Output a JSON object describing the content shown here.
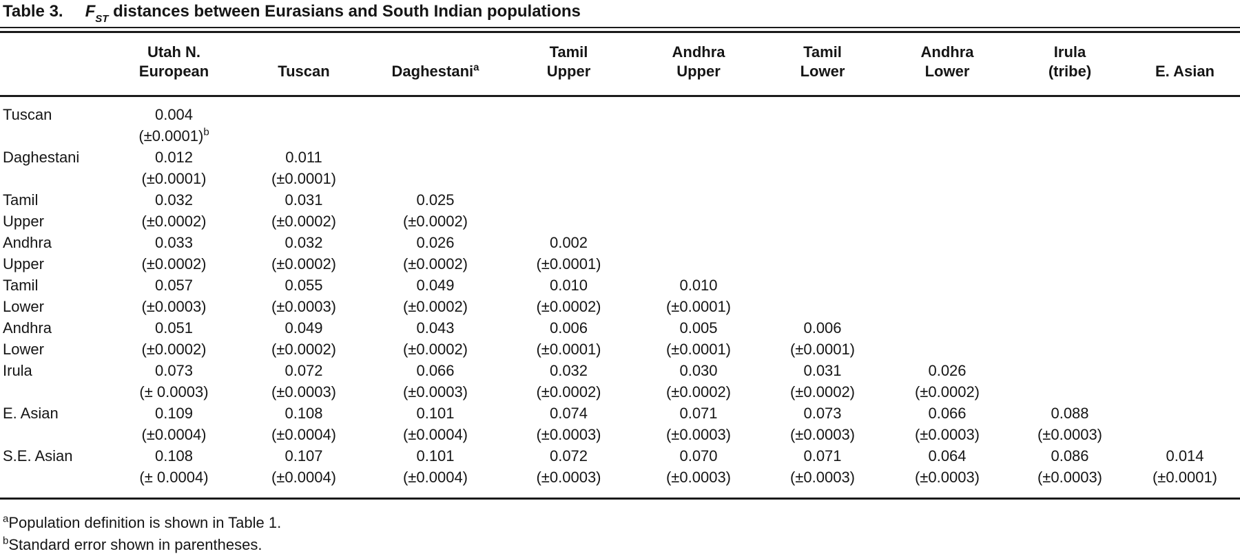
{
  "title": {
    "label": "Table 3.",
    "symbol": "F",
    "symbol_sub": "ST",
    "text": " distances between Eurasians and South Indian populations"
  },
  "table": {
    "column_headers": [
      {
        "line1": "Utah N.",
        "line2": "European",
        "sup": ""
      },
      {
        "line1": "",
        "line2": "Tuscan",
        "sup": ""
      },
      {
        "line1": "",
        "line2": "Daghestani",
        "sup": "a"
      },
      {
        "line1": "Tamil",
        "line2": "Upper",
        "sup": ""
      },
      {
        "line1": "Andhra",
        "line2": "Upper",
        "sup": ""
      },
      {
        "line1": "Tamil",
        "line2": "Lower",
        "sup": ""
      },
      {
        "line1": "Andhra",
        "line2": "Lower",
        "sup": ""
      },
      {
        "line1": "Irula",
        "line2": "(tribe)",
        "sup": ""
      },
      {
        "line1": "",
        "line2": "E. Asian",
        "sup": ""
      }
    ],
    "rows": [
      {
        "label_line1": "Tuscan",
        "label_line2": "",
        "values": [
          "0.004"
        ],
        "errors": [
          "(±0.0001)"
        ],
        "error_sups": [
          "b"
        ]
      },
      {
        "label_line1": "Daghestani",
        "label_line2": "",
        "values": [
          "0.012",
          "0.011"
        ],
        "errors": [
          "(±0.0001)",
          "(±0.0001)"
        ],
        "error_sups": [
          "",
          ""
        ]
      },
      {
        "label_line1": "Tamil",
        "label_line2": "Upper",
        "values": [
          "0.032",
          "0.031",
          "0.025"
        ],
        "errors": [
          "(±0.0002)",
          "(±0.0002)",
          "(±0.0002)"
        ],
        "error_sups": [
          "",
          "",
          ""
        ]
      },
      {
        "label_line1": "Andhra",
        "label_line2": "Upper",
        "values": [
          "0.033",
          "0.032",
          "0.026",
          "0.002"
        ],
        "errors": [
          "(±0.0002)",
          "(±0.0002)",
          "(±0.0002)",
          "(±0.0001)"
        ],
        "error_sups": [
          "",
          "",
          "",
          ""
        ]
      },
      {
        "label_line1": "Tamil",
        "label_line2": "Lower",
        "values": [
          "0.057",
          "0.055",
          "0.049",
          "0.010",
          "0.010"
        ],
        "errors": [
          "(±0.0003)",
          "(±0.0003)",
          "(±0.0002)",
          "(±0.0002)",
          "(±0.0001)"
        ],
        "error_sups": [
          "",
          "",
          "",
          "",
          ""
        ]
      },
      {
        "label_line1": "Andhra",
        "label_line2": "Lower",
        "values": [
          "0.051",
          "0.049",
          "0.043",
          "0.006",
          "0.005",
          "0.006"
        ],
        "errors": [
          "(±0.0002)",
          "(±0.0002)",
          "(±0.0002)",
          "(±0.0001)",
          "(±0.0001)",
          "(±0.0001)"
        ],
        "error_sups": [
          "",
          "",
          "",
          "",
          "",
          ""
        ]
      },
      {
        "label_line1": "Irula",
        "label_line2": "",
        "values": [
          "0.073",
          "0.072",
          "0.066",
          "0.032",
          "0.030",
          "0.031",
          "0.026"
        ],
        "errors": [
          "(± 0.0003)",
          "(±0.0003)",
          "(±0.0003)",
          "(±0.0002)",
          "(±0.0002)",
          "(±0.0002)",
          "(±0.0002)"
        ],
        "error_sups": [
          "",
          "",
          "",
          "",
          "",
          "",
          ""
        ]
      },
      {
        "label_line1": "E. Asian",
        "label_line2": "",
        "values": [
          "0.109",
          "0.108",
          "0.101",
          "0.074",
          "0.071",
          "0.073",
          "0.066",
          "0.088"
        ],
        "errors": [
          "(±0.0004)",
          "(±0.0004)",
          "(±0.0004)",
          "(±0.0003)",
          "(±0.0003)",
          "(±0.0003)",
          "(±0.0003)",
          "(±0.0003)"
        ],
        "error_sups": [
          "",
          "",
          "",
          "",
          "",
          "",
          "",
          ""
        ]
      },
      {
        "label_line1": "S.E. Asian",
        "label_line2": "",
        "values": [
          "0.108",
          "0.107",
          "0.101",
          "0.072",
          "0.070",
          "0.071",
          "0.064",
          "0.086",
          "0.014"
        ],
        "errors": [
          "(± 0.0004)",
          "(±0.0004)",
          "(±0.0004)",
          "(±0.0003)",
          "(±0.0003)",
          "(±0.0003)",
          "(±0.0003)",
          "(±0.0003)",
          "(±0.0001)"
        ],
        "error_sups": [
          "",
          "",
          "",
          "",
          "",
          "",
          "",
          "",
          ""
        ]
      }
    ]
  },
  "footnotes": [
    {
      "marker": "a",
      "text": "Population definition is shown in Table 1."
    },
    {
      "marker": "b",
      "text": "Standard error shown in parentheses."
    }
  ]
}
